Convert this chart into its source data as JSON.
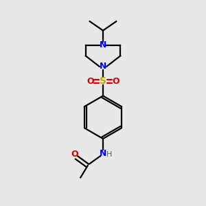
{
  "bg_color": "#e8e8e8",
  "atom_colors": {
    "C": "#000000",
    "N": "#0000ee",
    "O": "#dd0000",
    "S": "#bbaa00",
    "H": "#606060"
  },
  "figsize": [
    3.0,
    3.0
  ],
  "dpi": 100
}
